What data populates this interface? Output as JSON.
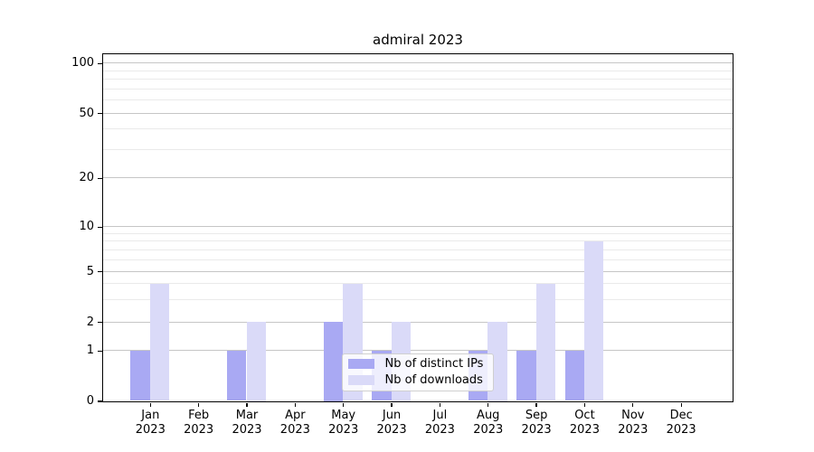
{
  "title": "admiral 2023",
  "colors": {
    "ips": "#a9a9f3",
    "downloads": "#dadaf8",
    "major_grid": "#c6c6c6",
    "minor_grid": "#eaeaea",
    "axis": "#000000",
    "legend_border": "#cfcfcf"
  },
  "legend": {
    "items": [
      {
        "label": "Nb of distinct IPs",
        "color_key": "ips"
      },
      {
        "label": "Nb of downloads",
        "color_key": "downloads"
      }
    ]
  },
  "y_axis": {
    "tick_labels": [
      "0",
      "1",
      "2",
      "5",
      "10",
      "20",
      "50",
      "100"
    ]
  },
  "x_axis": {
    "months": [
      "Jan",
      "Feb",
      "Mar",
      "Apr",
      "May",
      "Jun",
      "Jul",
      "Aug",
      "Sep",
      "Oct",
      "Nov",
      "Dec"
    ],
    "year": "2023"
  },
  "chart_data": {
    "type": "bar",
    "title": "admiral 2023",
    "categories": [
      "Jan 2023",
      "Feb 2023",
      "Mar 2023",
      "Apr 2023",
      "May 2023",
      "Jun 2023",
      "Jul 2023",
      "Aug 2023",
      "Sep 2023",
      "Oct 2023",
      "Nov 2023",
      "Dec 2023"
    ],
    "series": [
      {
        "name": "Nb of distinct IPs",
        "color": "#a9a9f3",
        "values": [
          1,
          0,
          1,
          0,
          2,
          1,
          0,
          1,
          1,
          1,
          0,
          0
        ]
      },
      {
        "name": "Nb of downloads",
        "color": "#dadaf8",
        "values": [
          4,
          0,
          2,
          0,
          4,
          2,
          0,
          2,
          4,
          8,
          0,
          0
        ]
      }
    ],
    "xlabel": "",
    "ylabel": "",
    "y_ticks": [
      0,
      1,
      2,
      5,
      10,
      20,
      50,
      100
    ],
    "y_minor_gridlines": [
      3,
      4,
      6,
      7,
      8,
      9,
      30,
      40,
      60,
      70,
      80,
      90
    ],
    "yscale": "log-above-1 with 0 at baseline",
    "ylim": [
      0,
      115
    ],
    "grid": true,
    "legend_position": "lower center"
  }
}
